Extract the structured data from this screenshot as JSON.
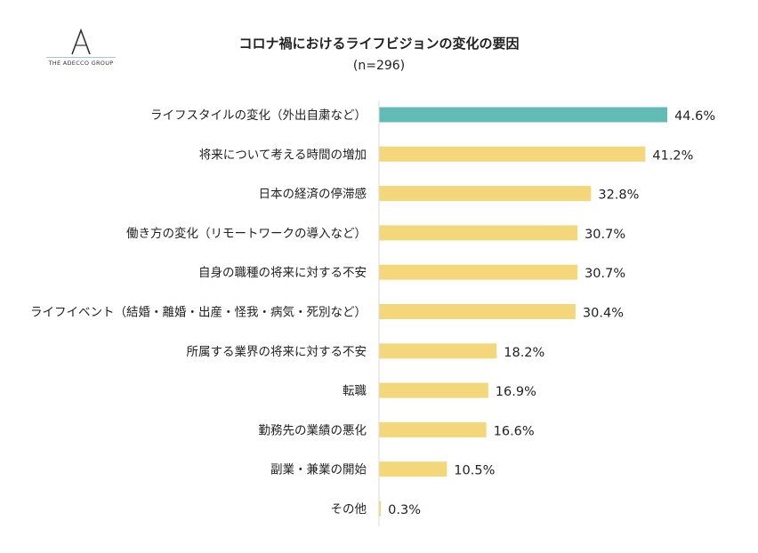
{
  "logo": {
    "text": "THE ADECCO GROUP"
  },
  "chart_data": {
    "type": "bar",
    "orientation": "horizontal",
    "title": "コロナ禍におけるライフビジョンの変化の要因",
    "subtitle": "(n=296)",
    "categories": [
      "ライフスタイルの変化（外出自粛など）",
      "将来について考える時間の増加",
      "日本の経済の停滞感",
      "働き方の変化（リモートワークの導入など）",
      "自身の職種の将来に対する不安",
      "ライフイベント（結婚・離婚・出産・怪我・病気・死別など）",
      "所属する業界の将来に対する不安",
      "転職",
      "勤務先の業績の悪化",
      "副業・兼業の開始",
      "その他"
    ],
    "values": [
      44.6,
      41.2,
      32.8,
      30.7,
      30.7,
      30.4,
      18.2,
      16.9,
      16.6,
      10.5,
      0.3
    ],
    "value_labels": [
      "44.6%",
      "41.2%",
      "32.8%",
      "30.7%",
      "30.7%",
      "30.4%",
      "18.2%",
      "16.9%",
      "16.6%",
      "10.5%",
      "0.3%"
    ],
    "unit": "%",
    "xlim": [
      0,
      45
    ],
    "grid": false,
    "colors": {
      "highlight": "#62bcb5",
      "default": "#f4d77a",
      "axis": "#d9d9d9"
    }
  }
}
